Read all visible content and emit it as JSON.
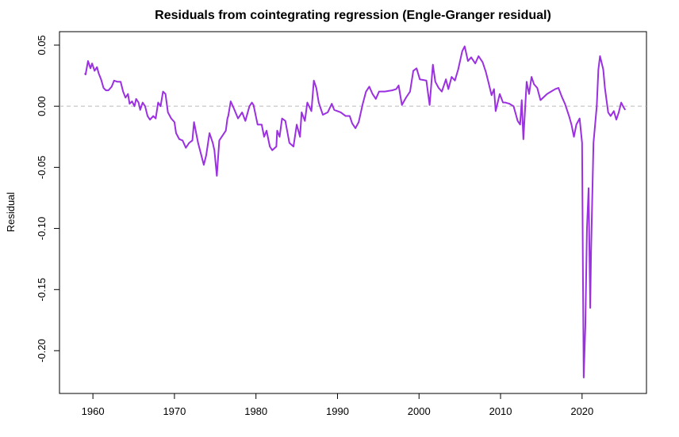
{
  "chart_data": {
    "type": "line",
    "title": "Residuals from cointegrating regression (Engle-Granger residual)",
    "y_label": "Residual",
    "xlim": [
      1955.9,
      2027.9
    ],
    "xticks": [
      1960,
      1970,
      1980,
      1990,
      2000,
      2010,
      2020
    ],
    "ylim": [
      -0.235,
      0.061
    ],
    "yticks": [
      0.05,
      {
        "value": 0,
        "label": "0.00"
      },
      -0.05,
      {
        "value": -0.1,
        "label": "-0.10"
      },
      -0.15,
      {
        "value": -0.2,
        "label": "-0.20"
      }
    ],
    "reference_line": 0,
    "reference_color": "#bbbbbb",
    "series": [
      {
        "name": "Residual",
        "color": "#9b30e0",
        "x": [
          1959.0,
          1959.1,
          1959.4,
          1959.7,
          1959.9,
          1960.2,
          1960.5,
          1960.7,
          1961.0,
          1961.3,
          1961.6,
          1961.9,
          1962.3,
          1962.6,
          1963.0,
          1963.4,
          1963.7,
          1964.0,
          1964.3,
          1964.5,
          1964.8,
          1965.1,
          1965.3,
          1965.6,
          1965.8,
          1966.1,
          1966.4,
          1966.7,
          1967.0,
          1967.4,
          1967.7,
          1968.0,
          1968.3,
          1968.6,
          1968.9,
          1969.2,
          1969.6,
          1970.0,
          1970.2,
          1970.6,
          1971.0,
          1971.4,
          1971.8,
          1972.2,
          1972.4,
          1972.9,
          1973.6,
          1973.9,
          1974.3,
          1974.7,
          1974.9,
          1975.2,
          1975.5,
          1976.3,
          1976.5,
          1976.6,
          1976.9,
          1977.3,
          1977.8,
          1978.3,
          1978.7,
          1979.2,
          1979.5,
          1979.7,
          1980.2,
          1980.7,
          1981.0,
          1981.3,
          1981.7,
          1982.0,
          1982.5,
          1982.6,
          1982.9,
          1983.2,
          1983.6,
          1984.1,
          1984.6,
          1985.0,
          1985.4,
          1985.6,
          1986.0,
          1986.3,
          1986.8,
          1987.1,
          1987.4,
          1987.7,
          1988.2,
          1988.8,
          1989.3,
          1989.6,
          1990.4,
          1991.0,
          1991.5,
          1991.8,
          1992.2,
          1992.6,
          1993.1,
          1993.5,
          1993.9,
          1994.3,
          1994.7,
          1995.1,
          1995.8,
          1996.7,
          1997.2,
          1997.5,
          1997.9,
          1998.4,
          1998.9,
          1999.3,
          1999.7,
          2000.1,
          2000.9,
          2001.3,
          2001.7,
          2002.0,
          2002.4,
          2002.8,
          2003.3,
          2003.6,
          2004.0,
          2004.4,
          2004.8,
          2005.3,
          2005.6,
          2006.0,
          2006.4,
          2006.9,
          2007.3,
          2007.8,
          2008.2,
          2008.5,
          2008.9,
          2009.2,
          2009.4,
          2009.9,
          2010.3,
          2010.6,
          2011.1,
          2011.6,
          2012.1,
          2012.4,
          2012.6,
          2012.8,
          2013.2,
          2013.5,
          2013.8,
          2014.1,
          2014.5,
          2014.9,
          2015.7,
          2016.2,
          2016.7,
          2017.1,
          2017.5,
          2017.9,
          2018.4,
          2018.7,
          2019.0,
          2019.3,
          2019.7,
          2020.0,
          2020.1,
          2020.2,
          2020.4,
          2020.6,
          2020.8,
          2021.0,
          2021.1,
          2021.4,
          2021.8,
          2022.0,
          2022.2,
          2022.6,
          2022.8,
          2023.2,
          2023.5,
          2023.9,
          2024.2,
          2024.5,
          2024.8,
          2025.1,
          2025.3
        ],
        "values": [
          0.027,
          0.026,
          0.037,
          0.031,
          0.035,
          0.029,
          0.032,
          0.027,
          0.022,
          0.015,
          0.013,
          0.013,
          0.016,
          0.021,
          0.02,
          0.02,
          0.012,
          0.007,
          0.01,
          0.002,
          0.004,
          0.0,
          0.006,
          0.003,
          -0.003,
          0.003,
          0.0,
          -0.008,
          -0.011,
          -0.008,
          -0.01,
          0.003,
          0.0,
          0.012,
          0.01,
          -0.005,
          -0.01,
          -0.013,
          -0.022,
          -0.027,
          -0.028,
          -0.034,
          -0.03,
          -0.028,
          -0.013,
          -0.03,
          -0.048,
          -0.04,
          -0.022,
          -0.03,
          -0.036,
          -0.057,
          -0.028,
          -0.02,
          -0.01,
          -0.008,
          0.004,
          -0.002,
          -0.01,
          -0.005,
          -0.012,
          0.0,
          0.003,
          0.001,
          -0.015,
          -0.015,
          -0.025,
          -0.02,
          -0.033,
          -0.036,
          -0.033,
          -0.02,
          -0.025,
          -0.01,
          -0.012,
          -0.03,
          -0.033,
          -0.015,
          -0.025,
          -0.005,
          -0.012,
          0.003,
          -0.004,
          0.021,
          0.015,
          0.003,
          -0.007,
          -0.005,
          0.002,
          -0.003,
          -0.005,
          -0.008,
          -0.008,
          -0.014,
          -0.018,
          -0.013,
          0.002,
          0.012,
          0.016,
          0.01,
          0.006,
          0.012,
          0.012,
          0.013,
          0.014,
          0.017,
          0.001,
          0.007,
          0.012,
          0.029,
          0.031,
          0.022,
          0.021,
          0.001,
          0.034,
          0.02,
          0.015,
          0.012,
          0.022,
          0.014,
          0.024,
          0.021,
          0.03,
          0.045,
          0.049,
          0.037,
          0.04,
          0.035,
          0.041,
          0.036,
          0.028,
          0.02,
          0.009,
          0.014,
          -0.004,
          0.01,
          0.003,
          0.003,
          0.002,
          0.0,
          -0.012,
          -0.015,
          0.005,
          -0.027,
          0.02,
          0.01,
          0.024,
          0.018,
          0.015,
          0.005,
          0.01,
          0.012,
          0.014,
          0.015,
          0.008,
          0.002,
          -0.008,
          -0.015,
          -0.025,
          -0.015,
          -0.01,
          -0.03,
          -0.13,
          -0.222,
          -0.18,
          -0.1,
          -0.067,
          -0.165,
          -0.12,
          -0.03,
          0.0,
          0.03,
          0.041,
          0.03,
          0.015,
          -0.005,
          -0.008,
          -0.004,
          -0.011,
          -0.005,
          0.003,
          -0.001,
          -0.003
        ]
      }
    ]
  }
}
